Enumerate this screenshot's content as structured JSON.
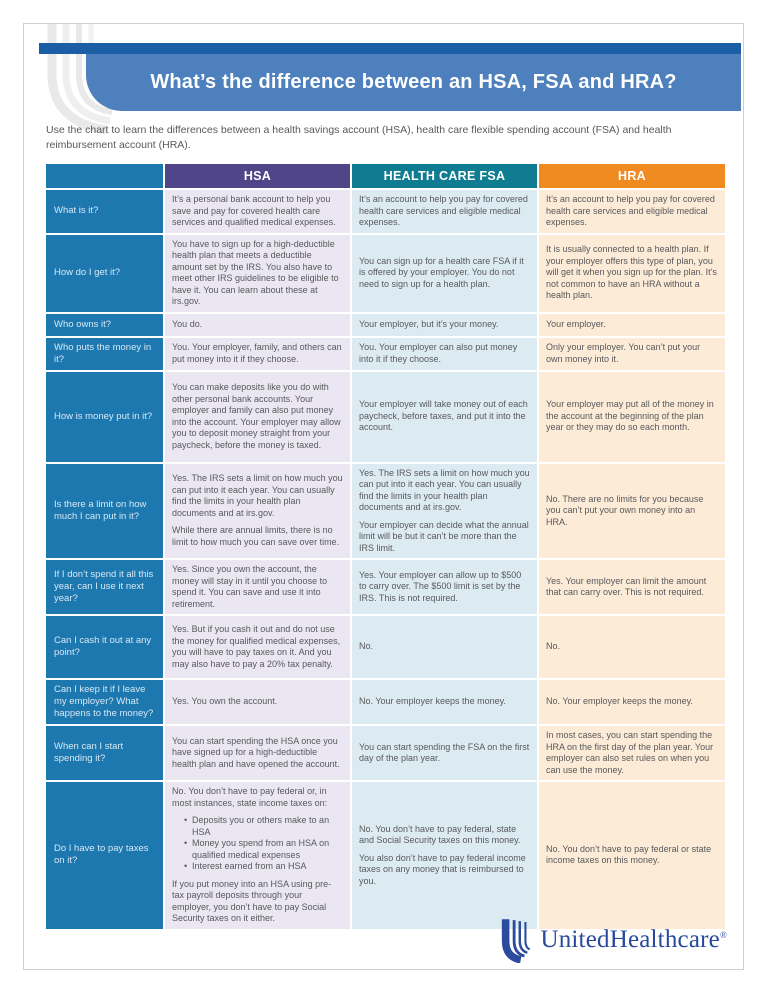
{
  "page": {
    "title": "What’s the difference between an HSA, FSA and HRA?",
    "intro": "Use the chart to learn the differences between a health savings account (HSA), health care flexible spending account (FSA) and health reimbursement account (HRA).",
    "logo_text": "UnitedHealthcare",
    "logo_reg": "®"
  },
  "colors": {
    "top_bar": "#1c5ea6",
    "banner": "#4d80bc",
    "label_column": "#1e78b0",
    "hsa_header": "#504589",
    "fsa_header": "#107c92",
    "hra_header": "#ef8b20",
    "hsa_cell": "#eae7f2",
    "fsa_cell": "#dcebf2",
    "hra_cell": "#fcebd7",
    "body_text": "#58595b",
    "label_text": "#d6e8f3",
    "logo_blue": "#28499e"
  },
  "table": {
    "columns": [
      {
        "label": "",
        "color": "#1e78b0"
      },
      {
        "label": "HSA",
        "color": "#504589"
      },
      {
        "label": "HEALTH CARE FSA",
        "color": "#107c92"
      },
      {
        "label": "HRA",
        "color": "#ef8b20"
      }
    ],
    "rows": [
      {
        "question": "What is it?",
        "hsa": [
          "It’s a personal bank account to help you save and pay for covered health care services and qualified medical expenses."
        ],
        "fsa": [
          "It’s an account to help you pay for covered health care services and eligible medical expenses."
        ],
        "hra": [
          "It’s an account to help you pay for covered health care services and eligible medical expenses."
        ]
      },
      {
        "question": "How do I get it?",
        "hsa": [
          "You have to sign up for a high-deductible health plan that meets a deductible amount set by the IRS. You also have to meet other IRS guidelines to be eligible to have it. You can learn about these at irs.gov."
        ],
        "fsa": [
          "You can sign up for a health care FSA if it is offered by your employer. You do not need to sign up for a health plan."
        ],
        "hra": [
          "It is usually connected to a health plan. If your employer offers this type of plan, you will get it when you sign up for the plan. It’s not common to have an HRA without a health plan."
        ]
      },
      {
        "question": "Who owns it?",
        "hsa": [
          "You do."
        ],
        "fsa": [
          "Your employer, but it’s your money."
        ],
        "hra": [
          "Your employer."
        ]
      },
      {
        "question": "Who puts the money in it?",
        "hsa": [
          "You. Your employer, family, and others can put money into it if they choose."
        ],
        "fsa": [
          "You. Your employer can also put money into it if they choose."
        ],
        "hra": [
          "Only your employer. You can’t put your own money into it."
        ]
      },
      {
        "question": "How is money put in it?",
        "hsa": [
          "You can make deposits like you do with other personal bank accounts. Your employer and family can also put money into the account. Your employer may allow you to deposit money straight from your paycheck, before the money is taxed."
        ],
        "fsa": [
          "Your employer will take money out of each paycheck, before taxes, and put it into the account."
        ],
        "hra": [
          "Your employer may put all of the money in the account at the beginning of the plan year or they may do so each month."
        ]
      },
      {
        "question": "Is there a limit on how much I can put in it?",
        "hsa": [
          "Yes. The IRS sets a limit on how much you can put into it each year. You can usually find the limits in your health plan documents and at irs.gov.",
          "While there are annual limits, there is no limit to how much you can save over time."
        ],
        "fsa": [
          "Yes. The IRS sets a limit on how much you can put into it each year. You can usually find the limits in your health plan documents and at irs.gov.",
          "Your employer can decide what the annual limit will be but it can’t be more than the IRS limit."
        ],
        "hra": [
          "No. There are no limits for you because you can’t put your own money into an HRA."
        ]
      },
      {
        "question": "If I don’t spend it all this year, can I use it next year?",
        "hsa": [
          "Yes. Since you own the account, the money will stay in it until you choose to spend it. You can save and use it into retirement."
        ],
        "fsa": [
          "Yes. Your employer can allow up to $500 to carry over. The $500 limit is set by the IRS. This is not required."
        ],
        "hra": [
          "Yes. Your employer can limit the amount that can carry over. This is not required."
        ]
      },
      {
        "question": "Can I cash it out at any point?",
        "hsa": [
          "Yes. But if you cash it out and do not use the money for qualified medical expenses, you will have to pay taxes on it. And you may also have to pay a 20% tax penalty."
        ],
        "fsa": [
          "No."
        ],
        "hra": [
          "No."
        ]
      },
      {
        "question": "Can I keep it if I leave my employer? What happens to the money?",
        "hsa": [
          "Yes. You own the account."
        ],
        "fsa": [
          "No. Your employer keeps the money."
        ],
        "hra": [
          "No. Your employer keeps the money."
        ]
      },
      {
        "question": "When can I start spending  it?",
        "hsa": [
          "You can start spending the HSA once you have signed up for a high-deductible health plan and have opened the account."
        ],
        "fsa": [
          "You can start spending the FSA on the first day of the plan year."
        ],
        "hra": [
          "In most cases, you can start spending the HRA on the first day of the plan year. Your employer can also set rules on when you can use the money."
        ]
      },
      {
        "question": "Do I have to pay taxes on it?",
        "hsa": [
          "No. You don’t have to pay federal or, in most instances, state income taxes on:",
          {
            "bullets": [
              "Deposits you or others make to an HSA",
              "Money you spend from an HSA on qualified medical expenses",
              "Interest earned from an HSA"
            ]
          },
          "If you put money into an HSA using pre-tax payroll deposits through your employer, you don’t have to pay Social Security taxes on it either."
        ],
        "fsa": [
          "No. You don’t have to pay federal, state and Social Security taxes on this money.",
          "You also don’t have to pay federal income taxes on any money that is reimbursed to you."
        ],
        "hra": [
          "No. You don’t have to pay federal or state income taxes on this money."
        ]
      }
    ]
  }
}
